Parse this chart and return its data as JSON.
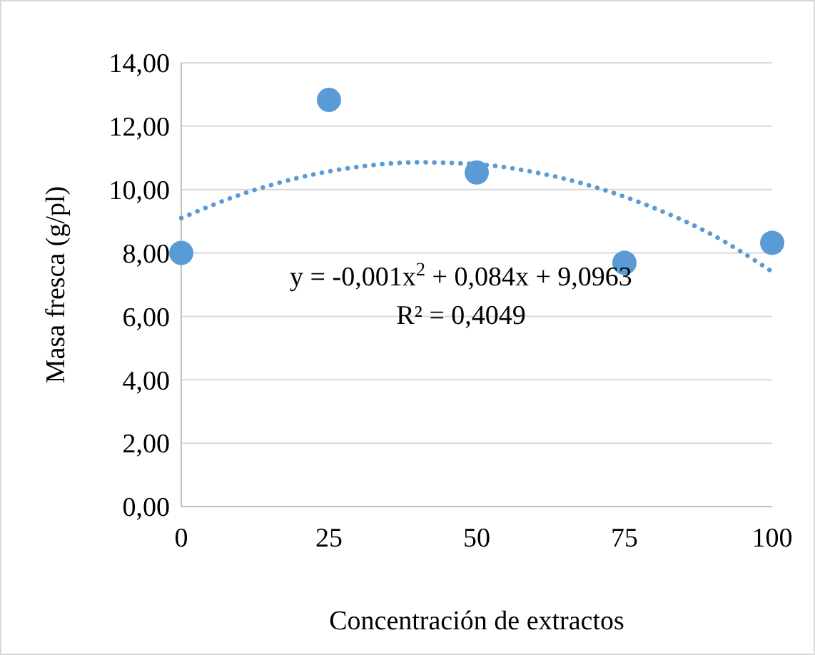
{
  "chart_data": {
    "type": "scatter",
    "xlabel": "Concentración de extractos",
    "ylabel": "Masa fresca (g/pl)",
    "series": [
      {
        "color": "#5b9bd5",
        "x": [
          0,
          25,
          50,
          75,
          100
        ],
        "values": [
          8.0,
          12.83,
          10.54,
          7.69,
          8.32
        ],
        "marker": "circle"
      },
      {
        "type": "line",
        "color": "#5b9bd5",
        "line_style": "dotted",
        "x": [
          0,
          10,
          20,
          30,
          40,
          50,
          60,
          70,
          80,
          90,
          100
        ],
        "values": [
          9.1,
          9.84,
          10.38,
          10.72,
          10.86,
          10.8,
          10.54,
          10.08,
          9.42,
          8.56,
          7.41
        ]
      }
    ],
    "xlim": [
      0,
      100
    ],
    "xticks": [
      0,
      25,
      50,
      75,
      100
    ],
    "ylim": [
      0,
      14
    ],
    "yticks": [
      {
        "value": 0,
        "label": "0,00"
      },
      {
        "value": 2,
        "label": "2,00"
      },
      {
        "value": 4,
        "label": "4,00"
      },
      {
        "value": 6,
        "label": "6,00"
      },
      {
        "value": 8,
        "label": "8,00"
      },
      {
        "value": 10,
        "label": "10,00"
      },
      {
        "value": 12,
        "label": "12,00"
      },
      {
        "value": 14,
        "label": "14,00"
      }
    ],
    "grid": "y",
    "annotations": [
      "y = -0,001x$^{2}$ + 0,084x + 9,0963",
      "R² = 0,4049"
    ]
  }
}
